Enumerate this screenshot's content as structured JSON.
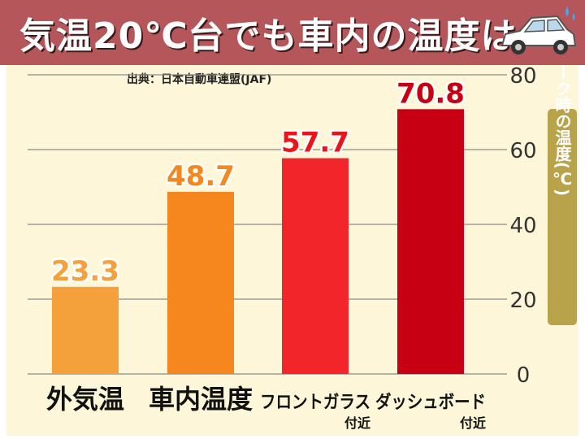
{
  "title": "気温20℃台でも車内の温度は",
  "source": "出典：日本自動車連盟(JAF)",
  "chart_data": {
    "type": "bar",
    "categories": [
      "外気温",
      "車内温度",
      "フロントガラス",
      "ダッシュボード"
    ],
    "category_notes": [
      "",
      "",
      "付近",
      "付近"
    ],
    "values": [
      23.3,
      48.7,
      57.7,
      70.8
    ],
    "value_labels": [
      "23.3",
      "48.7",
      "57.7",
      "70.8"
    ],
    "bar_colors": [
      "#f5a13b",
      "#f5871e",
      "#f2262a",
      "#c80013"
    ],
    "label_colors": [
      "#f5a13b",
      "#f5871e",
      "#e8161b",
      "#c80013"
    ],
    "ylabel": "ピーク時の温度(℃)",
    "ylim": [
      0,
      80
    ],
    "yticks": [
      0,
      20,
      40,
      60,
      80
    ],
    "grid": true
  },
  "icons": {
    "car": "car-icon"
  }
}
